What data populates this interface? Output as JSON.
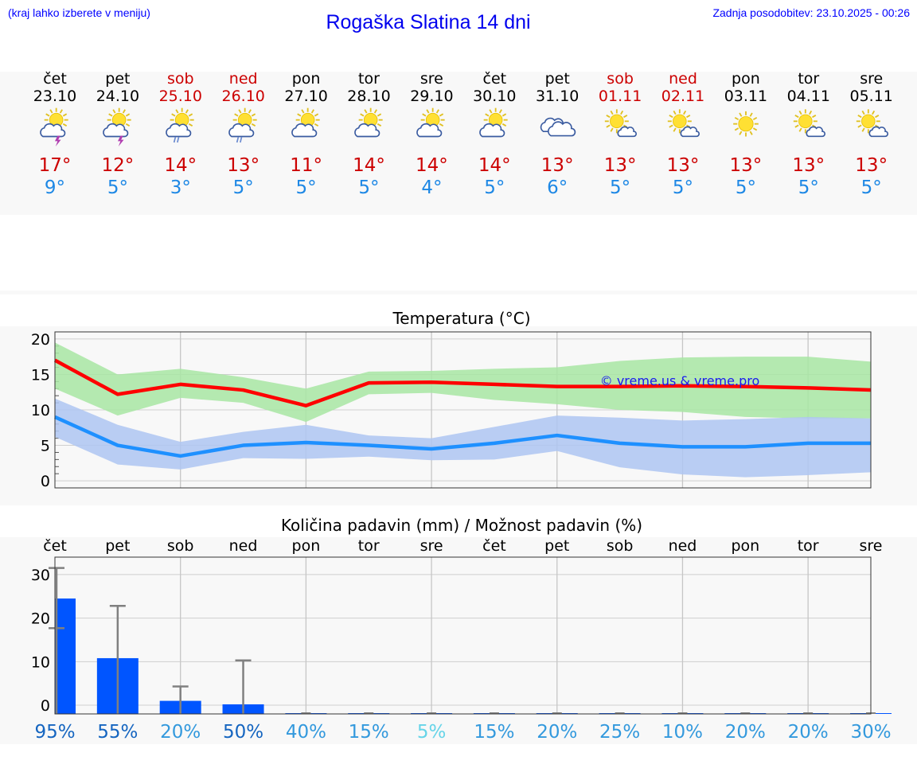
{
  "header": {
    "note_left": "(kraj lahko izberete v meniju)",
    "title": "Rogaška Slatina 14 dni",
    "note_right": "Zadnja posodobitev: 23.10.2025 - 00:26"
  },
  "colors": {
    "weekend": "#cc0000",
    "max_line": "#ff0000",
    "min_line": "#1e90ff",
    "max_band": "#a8e6a3",
    "min_band": "#aec6f2",
    "bar": "#0055ff"
  },
  "days": [
    {
      "name": "čet",
      "date": "23.10",
      "weekend": false,
      "icon": "sun-cloud-thunder-icon",
      "tmax": "17°",
      "tmin": "9°"
    },
    {
      "name": "pet",
      "date": "24.10",
      "weekend": false,
      "icon": "sun-cloud-thunder-icon",
      "tmax": "12°",
      "tmin": "5°"
    },
    {
      "name": "sob",
      "date": "25.10",
      "weekend": true,
      "icon": "sun-cloud-rain-icon",
      "tmax": "14°",
      "tmin": "3°"
    },
    {
      "name": "ned",
      "date": "26.10",
      "weekend": true,
      "icon": "sun-cloud-rain-icon",
      "tmax": "13°",
      "tmin": "5°"
    },
    {
      "name": "pon",
      "date": "27.10",
      "weekend": false,
      "icon": "sun-cloud-icon",
      "tmax": "11°",
      "tmin": "5°"
    },
    {
      "name": "tor",
      "date": "28.10",
      "weekend": false,
      "icon": "sun-cloud-icon",
      "tmax": "14°",
      "tmin": "5°"
    },
    {
      "name": "sre",
      "date": "29.10",
      "weekend": false,
      "icon": "sun-cloud-icon",
      "tmax": "14°",
      "tmin": "4°"
    },
    {
      "name": "čet",
      "date": "30.10",
      "weekend": false,
      "icon": "sun-cloud-icon",
      "tmax": "14°",
      "tmin": "5°"
    },
    {
      "name": "pet",
      "date": "31.10",
      "weekend": false,
      "icon": "cloudy-icon",
      "tmax": "13°",
      "tmin": "6°"
    },
    {
      "name": "sob",
      "date": "01.11",
      "weekend": true,
      "icon": "sun-small-cloud-icon",
      "tmax": "13°",
      "tmin": "5°"
    },
    {
      "name": "ned",
      "date": "02.11",
      "weekend": true,
      "icon": "sun-small-cloud-icon",
      "tmax": "13°",
      "tmin": "5°"
    },
    {
      "name": "pon",
      "date": "03.11",
      "weekend": false,
      "icon": "sun-icon",
      "tmax": "13°",
      "tmin": "5°"
    },
    {
      "name": "tor",
      "date": "04.11",
      "weekend": false,
      "icon": "sun-small-cloud-icon",
      "tmax": "13°",
      "tmin": "5°"
    },
    {
      "name": "sre",
      "date": "05.11",
      "weekend": false,
      "icon": "sun-small-cloud-icon",
      "tmax": "13°",
      "tmin": "5°"
    }
  ],
  "chart_data": [
    {
      "type": "line",
      "title": "Temperatura (°C)",
      "ylim": [
        -1,
        21
      ],
      "yticks": [
        "0",
        "5",
        "10",
        "15",
        "20"
      ],
      "grid": true,
      "watermark": "© vreme.us & vreme.pro",
      "x": [
        0,
        1,
        2,
        3,
        4,
        5,
        6,
        7,
        8,
        9,
        10,
        11,
        12,
        13
      ],
      "series": [
        {
          "key": "max",
          "values": [
            17,
            12.2,
            13.6,
            12.8,
            10.6,
            13.8,
            13.9,
            13.6,
            13.3,
            13.3,
            13.4,
            13.3,
            13.1,
            12.8
          ],
          "band_low": [
            13,
            9.2,
            11.7,
            11,
            8.3,
            12.2,
            12.4,
            11.4,
            10.8,
            10,
            9.7,
            9,
            8.8,
            8.8
          ],
          "band_high": [
            19.5,
            15,
            15.8,
            14.6,
            13,
            15.4,
            15.5,
            15.8,
            16,
            16.9,
            17.4,
            17.5,
            17.5,
            16.8
          ]
        },
        {
          "key": "min",
          "values": [
            9,
            5,
            3.5,
            5,
            5.4,
            5,
            4.5,
            5.3,
            6.4,
            5.3,
            4.8,
            4.8,
            5.3,
            5.3
          ],
          "band_low": [
            6.2,
            2.3,
            1.6,
            3.2,
            3.1,
            3.4,
            2.9,
            3,
            4.2,
            1.9,
            0.9,
            0.5,
            0.8,
            1.2
          ],
          "band_high": [
            11.6,
            7.9,
            5.5,
            6.9,
            7.9,
            6.4,
            6,
            7.6,
            9.2,
            8.9,
            8.5,
            8.7,
            9,
            8.8
          ]
        }
      ]
    },
    {
      "type": "bar",
      "title": "Količina padavin (mm) / Možnost padavin (%)",
      "categories": [
        "čet",
        "pet",
        "sob",
        "ned",
        "pon",
        "tor",
        "sre",
        "čet",
        "pet",
        "sob",
        "ned",
        "pon",
        "tor",
        "sre"
      ],
      "ylim": [
        -2,
        34
      ],
      "yticks": [
        "0",
        "10",
        "20",
        "30"
      ],
      "grid": true,
      "values": [
        24.5,
        10.8,
        1,
        0.2,
        0,
        0,
        0,
        0,
        0,
        0,
        0,
        0,
        0,
        0
      ],
      "error_high": [
        31.5,
        22.8,
        4.3,
        10.3,
        0,
        0,
        0,
        0,
        0,
        0,
        0,
        0,
        0,
        0
      ],
      "error_low": [
        17.7,
        0,
        0,
        0,
        0,
        0,
        0,
        0,
        0,
        0,
        0,
        0,
        0,
        0
      ],
      "probability": [
        "95%",
        "55%",
        "20%",
        "50%",
        "40%",
        "15%",
        "5%",
        "15%",
        "20%",
        "25%",
        "10%",
        "20%",
        "20%",
        "30%"
      ],
      "probability_colors": [
        "#1565c0",
        "#1565c0",
        "#3399dd",
        "#1565c0",
        "#3399dd",
        "#3399dd",
        "#66d4e8",
        "#3399dd",
        "#3399dd",
        "#3399dd",
        "#3399dd",
        "#3399dd",
        "#3399dd",
        "#3399dd"
      ]
    }
  ]
}
